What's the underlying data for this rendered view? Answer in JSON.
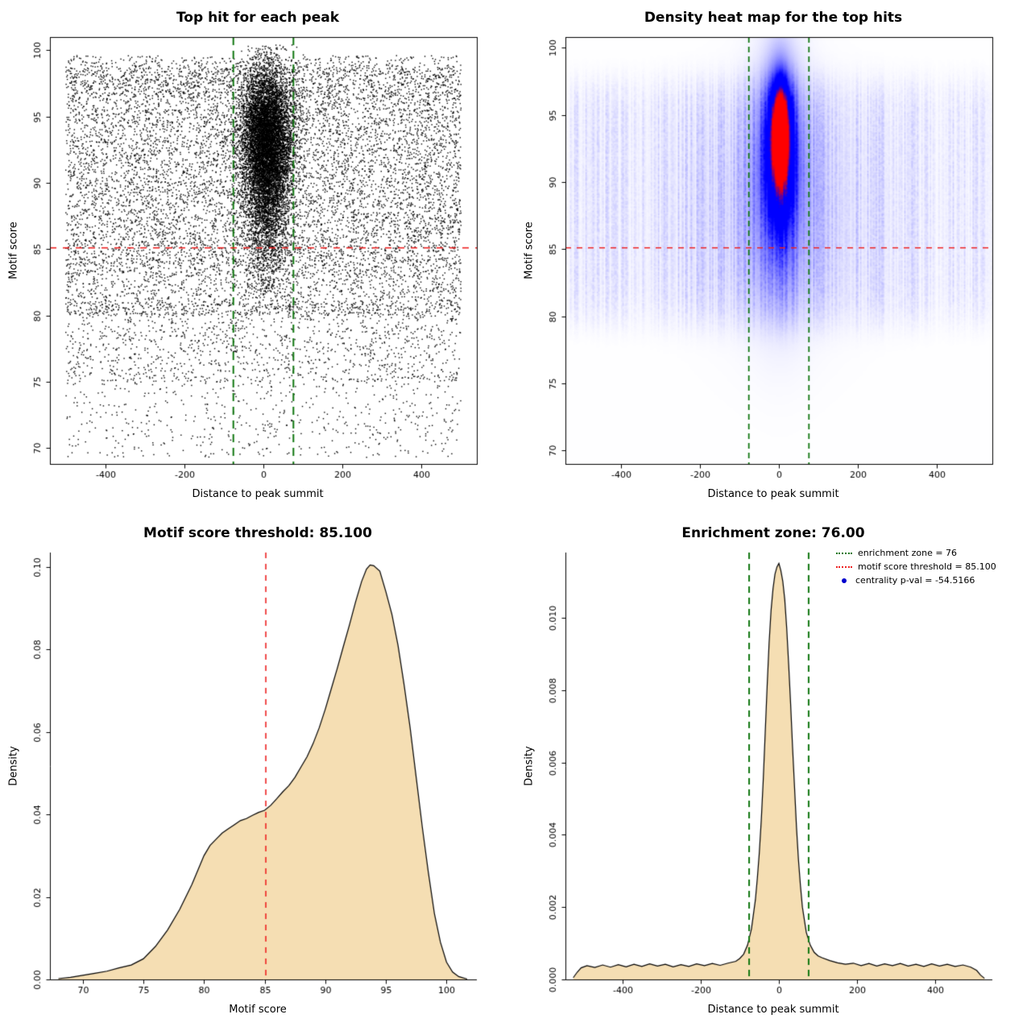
{
  "colors": {
    "background": "#FFFFFF",
    "points": "#000000",
    "enrichment_zone_green": "#117711",
    "threshold_red": "#EE2222",
    "density_fill_wheat": "#F5DEB3",
    "density_outline": "#000000",
    "legend_point_blue": "#0000CD",
    "heat_low": "#FFFFFF",
    "heat_mid": "#0000FF",
    "heat_high": "#FF0000"
  },
  "chart_data": [
    {
      "type": "scatter",
      "title": "Top hit for each peak",
      "xlabel": "Distance to peak summit",
      "ylabel": "Motif score",
      "xlim": [
        -540,
        540
      ],
      "ylim": [
        68.8,
        101.0
      ],
      "xticks": [
        [
          -400,
          "-400"
        ],
        [
          -200,
          "-200"
        ],
        [
          0,
          "0"
        ],
        [
          200,
          "200"
        ],
        [
          400,
          "400"
        ]
      ],
      "yticks": [
        [
          70,
          "70"
        ],
        [
          75,
          "75"
        ],
        [
          80,
          "80"
        ],
        [
          85,
          "85"
        ],
        [
          90,
          "90"
        ],
        [
          95,
          "95"
        ],
        [
          100,
          "100"
        ]
      ],
      "vlines": {
        "x": [
          -76,
          76
        ],
        "color": "#117711",
        "width": 2,
        "dash": [
          10,
          7
        ]
      },
      "hlines": {
        "y": [
          85.1
        ],
        "color": "#EE2222",
        "width": 1.6,
        "dash": [
          8,
          8
        ]
      },
      "points": {
        "seed": 42,
        "color": "#000000",
        "background": {
          "n": 12000,
          "x_uniform": [
            -500,
            500
          ],
          "y_mixture": [
            {
              "w": 0.55,
              "range": [
                80,
                98.7
              ]
            },
            {
              "w": 0.2,
              "range": [
                83,
                96.5
              ]
            },
            {
              "w": 0.08,
              "range": [
                96.5,
                99.6
              ]
            },
            {
              "w": 0.12,
              "range": [
                75,
                81
              ]
            },
            {
              "w": 0.05,
              "range": [
                69.3,
                75.5
              ]
            }
          ]
        },
        "cluster": [
          {
            "n": 7000,
            "x_mean": 8,
            "x_sd": 33,
            "y_mean": 93.6,
            "y_sd": 2.6
          },
          {
            "n": 3000,
            "x_mean": 8,
            "x_sd": 28,
            "y_mean": 89.2,
            "y_sd": 3.4
          }
        ],
        "y_max": 100.4
      }
    },
    {
      "type": "heatmap",
      "title": "Density heat map for the top hits",
      "xlabel": "Distance to peak summit",
      "ylabel": "Motif score",
      "xlim": [
        -540,
        540
      ],
      "ylim": [
        69.0,
        100.8
      ],
      "xticks": [
        [
          -400,
          "-400"
        ],
        [
          -200,
          "-200"
        ],
        [
          0,
          "0"
        ],
        [
          200,
          "200"
        ],
        [
          400,
          "400"
        ]
      ],
      "yticks": [
        [
          70,
          "70"
        ],
        [
          75,
          "75"
        ],
        [
          80,
          "80"
        ],
        [
          85,
          "85"
        ],
        [
          90,
          "90"
        ],
        [
          95,
          "95"
        ],
        [
          100,
          "100"
        ]
      ],
      "vlines": {
        "x": [
          -76,
          76
        ],
        "color": "#117711",
        "width": 1.8,
        "dash": [
          7,
          5
        ]
      },
      "hlines": {
        "y": [
          85.1
        ],
        "color": "#EE2222",
        "width": 1.5,
        "dash": [
          7,
          7
        ]
      },
      "blobs": [
        {
          "amp": 1.0,
          "x": 4,
          "y": 93.6,
          "sx": 13,
          "sy": 2.1
        },
        {
          "amp": 0.5,
          "x": 3,
          "y": 92.6,
          "sx": 26,
          "sy": 4.0
        },
        {
          "amp": 0.22,
          "x": 2,
          "y": 90.8,
          "sx": 55,
          "sy": 7.0
        },
        {
          "amp": 0.09,
          "x": 0,
          "y": 87.5,
          "sx": 170,
          "sy": 7.5
        }
      ],
      "noise": {
        "seed": 11,
        "amp": 0.09,
        "y_center": 88.5,
        "y_halfwidth": 9.5
      },
      "colormap": [
        "#FFFFFF",
        "#0000FF",
        "#FF0000"
      ]
    },
    {
      "type": "area",
      "title": "Motif score threshold: 85.100",
      "xlabel": "Motif score",
      "ylabel": "Density",
      "xlim": [
        67.3,
        102.5
      ],
      "ylim": [
        0,
        0.1035
      ],
      "xticks": [
        [
          70,
          "70"
        ],
        [
          75,
          "75"
        ],
        [
          80,
          "80"
        ],
        [
          85,
          "85"
        ],
        [
          90,
          "90"
        ],
        [
          95,
          "95"
        ],
        [
          100,
          "100"
        ]
      ],
      "yticks": [
        [
          0,
          "0.00"
        ],
        [
          0.02,
          "0.02"
        ],
        [
          0.04,
          "0.04"
        ],
        [
          0.06,
          "0.06"
        ],
        [
          0.08,
          "0.08"
        ],
        [
          0.1,
          "0.10"
        ]
      ],
      "vlines": {
        "x": [
          85.1
        ],
        "color": "#EE2222",
        "width": 1.6,
        "dash": [
          7,
          7
        ]
      },
      "fill": "#F5DEB3",
      "stroke": "#000000",
      "points": [
        [
          68,
          0.0002
        ],
        [
          69,
          0.0005
        ],
        [
          70,
          0.001
        ],
        [
          71,
          0.0015
        ],
        [
          72,
          0.002
        ],
        [
          73,
          0.0028
        ],
        [
          74,
          0.0035
        ],
        [
          75,
          0.005
        ],
        [
          76,
          0.008
        ],
        [
          77,
          0.012
        ],
        [
          78,
          0.017
        ],
        [
          79,
          0.023
        ],
        [
          80,
          0.03
        ],
        [
          80.5,
          0.0325
        ],
        [
          81,
          0.034
        ],
        [
          81.5,
          0.0355
        ],
        [
          82,
          0.0365
        ],
        [
          82.5,
          0.0375
        ],
        [
          83,
          0.0385
        ],
        [
          83.5,
          0.039
        ],
        [
          84,
          0.0398
        ],
        [
          84.5,
          0.0405
        ],
        [
          85,
          0.041
        ],
        [
          85.5,
          0.0422
        ],
        [
          86,
          0.0438
        ],
        [
          86.5,
          0.0455
        ],
        [
          87,
          0.047
        ],
        [
          87.5,
          0.049
        ],
        [
          88,
          0.0515
        ],
        [
          88.5,
          0.054
        ],
        [
          89,
          0.0572
        ],
        [
          89.5,
          0.061
        ],
        [
          90,
          0.0655
        ],
        [
          90.5,
          0.0705
        ],
        [
          91,
          0.0755
        ],
        [
          91.5,
          0.0808
        ],
        [
          92,
          0.086
        ],
        [
          92.5,
          0.0915
        ],
        [
          93,
          0.0965
        ],
        [
          93.4,
          0.0995
        ],
        [
          93.7,
          0.1005
        ],
        [
          94,
          0.1003
        ],
        [
          94.5,
          0.099
        ],
        [
          95,
          0.094
        ],
        [
          95.5,
          0.0885
        ],
        [
          96,
          0.081
        ],
        [
          96.5,
          0.0715
        ],
        [
          97,
          0.061
        ],
        [
          97.5,
          0.049
        ],
        [
          98,
          0.037
        ],
        [
          98.5,
          0.026
        ],
        [
          99,
          0.016
        ],
        [
          99.5,
          0.009
        ],
        [
          100,
          0.0042
        ],
        [
          100.5,
          0.0018
        ],
        [
          101,
          0.0007
        ],
        [
          101.7,
          0.0001
        ]
      ]
    },
    {
      "type": "area",
      "title": "Enrichment zone: 76.00",
      "xlabel": "Distance to peak summit",
      "ylabel": "Density",
      "xlim": [
        -545,
        545
      ],
      "ylim": [
        0,
        0.0118
      ],
      "xticks": [
        [
          -400,
          "-400"
        ],
        [
          -200,
          "-200"
        ],
        [
          0,
          "0"
        ],
        [
          200,
          "200"
        ],
        [
          400,
          "400"
        ]
      ],
      "yticks": [
        [
          0,
          "0.000"
        ],
        [
          0.002,
          "0.002"
        ],
        [
          0.004,
          "0.004"
        ],
        [
          0.006,
          "0.006"
        ],
        [
          0.008,
          "0.008"
        ],
        [
          0.01,
          "0.010"
        ]
      ],
      "vlines": {
        "x": [
          -76,
          76
        ],
        "color": "#117711",
        "width": 2,
        "dash": [
          8,
          6
        ]
      },
      "fill": "#F5DEB3",
      "stroke": "#000000",
      "points": [
        [
          -525,
          5e-05
        ],
        [
          -515,
          0.0002
        ],
        [
          -505,
          0.00032
        ],
        [
          -490,
          0.00038
        ],
        [
          -470,
          0.00033
        ],
        [
          -450,
          0.0004
        ],
        [
          -430,
          0.00034
        ],
        [
          -410,
          0.00041
        ],
        [
          -390,
          0.00035
        ],
        [
          -370,
          0.00042
        ],
        [
          -350,
          0.00036
        ],
        [
          -330,
          0.00043
        ],
        [
          -310,
          0.00037
        ],
        [
          -290,
          0.00042
        ],
        [
          -270,
          0.00035
        ],
        [
          -250,
          0.00041
        ],
        [
          -230,
          0.00036
        ],
        [
          -210,
          0.00043
        ],
        [
          -190,
          0.00038
        ],
        [
          -170,
          0.00044
        ],
        [
          -150,
          0.00039
        ],
        [
          -130,
          0.00045
        ],
        [
          -110,
          0.0005
        ],
        [
          -100,
          0.00058
        ],
        [
          -90,
          0.0007
        ],
        [
          -80,
          0.00095
        ],
        [
          -70,
          0.0014
        ],
        [
          -60,
          0.0022
        ],
        [
          -55,
          0.0028
        ],
        [
          -50,
          0.0035
        ],
        [
          -45,
          0.0044
        ],
        [
          -40,
          0.0055
        ],
        [
          -35,
          0.0068
        ],
        [
          -30,
          0.0081
        ],
        [
          -25,
          0.0093
        ],
        [
          -20,
          0.0102
        ],
        [
          -15,
          0.0108
        ],
        [
          -10,
          0.0112
        ],
        [
          -5,
          0.0114
        ],
        [
          0,
          0.0115
        ],
        [
          5,
          0.0113
        ],
        [
          10,
          0.011
        ],
        [
          15,
          0.0105
        ],
        [
          20,
          0.0097
        ],
        [
          25,
          0.0087
        ],
        [
          30,
          0.0076
        ],
        [
          35,
          0.0064
        ],
        [
          40,
          0.0053
        ],
        [
          45,
          0.0042
        ],
        [
          50,
          0.0033
        ],
        [
          55,
          0.0026
        ],
        [
          60,
          0.002
        ],
        [
          70,
          0.0013
        ],
        [
          80,
          0.00095
        ],
        [
          90,
          0.00075
        ],
        [
          100,
          0.00065
        ],
        [
          110,
          0.0006
        ],
        [
          130,
          0.00052
        ],
        [
          150,
          0.00046
        ],
        [
          170,
          0.00042
        ],
        [
          190,
          0.00045
        ],
        [
          210,
          0.00038
        ],
        [
          230,
          0.00044
        ],
        [
          250,
          0.00037
        ],
        [
          270,
          0.00043
        ],
        [
          290,
          0.00038
        ],
        [
          310,
          0.00044
        ],
        [
          330,
          0.00037
        ],
        [
          350,
          0.00042
        ],
        [
          370,
          0.00036
        ],
        [
          390,
          0.00043
        ],
        [
          410,
          0.00037
        ],
        [
          430,
          0.00042
        ],
        [
          450,
          0.00036
        ],
        [
          470,
          0.0004
        ],
        [
          490,
          0.00034
        ],
        [
          505,
          0.00025
        ],
        [
          515,
          0.00012
        ],
        [
          525,
          3e-05
        ]
      ],
      "legend": {
        "position": "topright",
        "items": [
          {
            "label": "enrichment zone = 76",
            "type": "line",
            "color": "#117711"
          },
          {
            "label": "motif score threshold = 85.100",
            "type": "line",
            "color": "#EE2222"
          },
          {
            "label": "centrality p-val = -54.5166",
            "type": "point",
            "color": "#0000CD"
          }
        ]
      }
    }
  ]
}
